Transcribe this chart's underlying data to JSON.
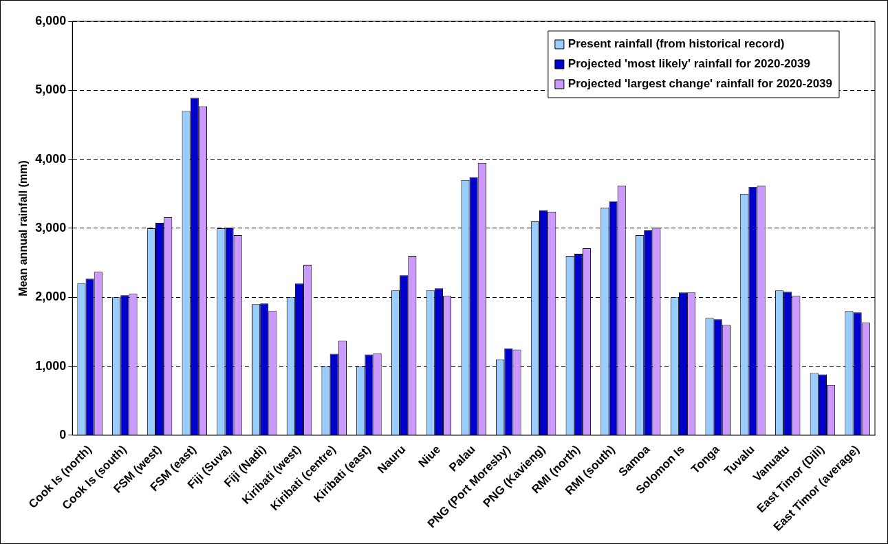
{
  "chart_data": {
    "type": "bar",
    "ylabel": "Mean annual rainfall (mm)",
    "categories": [
      "Cook Is (north)",
      "Cook Is (south)",
      "FSM (west)",
      "FSM (east)",
      "Fiji (Suva)",
      "Fiji (Nadi)",
      "Kiribati (west)",
      "Kiribati (centre)",
      "Kiribati (east)",
      "Nauru",
      "Niue",
      "Palau",
      "PNG (Port Moresby)",
      "PNG (Kavieng)",
      "RMI (north)",
      "RMI (south)",
      "Samoa",
      "Solomon Is",
      "Tonga",
      "Tuvalu",
      "Vanuatu",
      "East Timor (Dili)",
      "East Timor (average)"
    ],
    "series": [
      {
        "name": "Present rainfall (from historical record)",
        "color": "#99ccff",
        "values": [
          2200,
          2000,
          3000,
          4700,
          3000,
          1900,
          2000,
          1000,
          1000,
          2100,
          2100,
          3700,
          1100,
          3100,
          2600,
          3300,
          2900,
          2000,
          1700,
          3500,
          2100,
          900,
          1800
        ]
      },
      {
        "name": "Projected 'most likely' rainfall for 2020-2039",
        "color": "#0000cc",
        "values": [
          2270,
          2030,
          3080,
          4890,
          3010,
          1910,
          2200,
          1180,
          1170,
          2320,
          2130,
          3740,
          1260,
          3260,
          2630,
          3390,
          2970,
          2070,
          1680,
          3600,
          2080,
          880,
          1780
        ]
      },
      {
        "name": "Projected 'largest change' rainfall for 2020-2039",
        "color": "#cc99ff",
        "values": [
          2370,
          2050,
          3160,
          4770,
          2900,
          1800,
          2470,
          1370,
          1190,
          2600,
          2020,
          3950,
          1240,
          3240,
          2710,
          3620,
          3010,
          2070,
          1600,
          3620,
          2020,
          730,
          1630
        ]
      }
    ],
    "ylim": [
      0,
      6000
    ],
    "yticks": [
      {
        "value": 0,
        "label": "0"
      },
      {
        "value": 1000,
        "label": "1,000"
      },
      {
        "value": 2000,
        "label": "2,000"
      },
      {
        "value": 3000,
        "label": "3,000"
      },
      {
        "value": 4000,
        "label": "4,000"
      },
      {
        "value": 5000,
        "label": "5,000"
      },
      {
        "value": 6000,
        "label": "6,000"
      }
    ],
    "grid": "y",
    "line_style": "dashed",
    "legend": "top right"
  }
}
